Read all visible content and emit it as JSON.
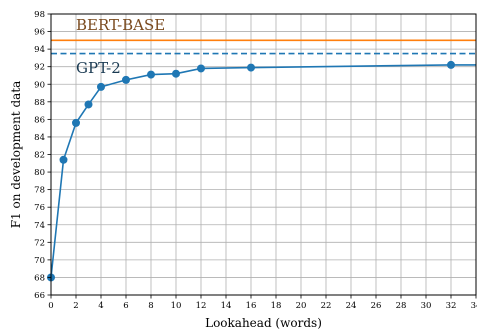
{
  "chart_data": {
    "type": "line",
    "xlabel": "Lookahead (words)",
    "ylabel": "F1 on development data",
    "xlim": [
      0,
      34
    ],
    "ylim": [
      66,
      98
    ],
    "xticks": [
      0,
      2,
      4,
      6,
      8,
      10,
      12,
      14,
      16,
      18,
      20,
      22,
      24,
      26,
      28,
      30,
      32,
      34
    ],
    "yticks": [
      66,
      68,
      70,
      72,
      74,
      76,
      78,
      80,
      82,
      84,
      86,
      88,
      90,
      92,
      94,
      96,
      98
    ],
    "grid": true,
    "series": [
      {
        "x": [
          0,
          1,
          2,
          3,
          4,
          6,
          8,
          10,
          12,
          16,
          32,
          34
        ],
        "y": [
          68.0,
          81.4,
          85.6,
          87.7,
          89.7,
          90.5,
          91.1,
          91.2,
          91.8,
          91.9,
          92.2,
          92.2
        ],
        "markers_x": [
          0,
          1,
          2,
          3,
          4,
          6,
          8,
          10,
          12,
          16,
          32
        ],
        "markers_y": [
          68.0,
          81.4,
          85.6,
          87.7,
          89.7,
          90.5,
          91.1,
          91.2,
          91.8,
          91.9,
          92.2
        ],
        "color": "#1f77b4"
      }
    ],
    "reference_lines": [
      {
        "label": "BERT-BASE",
        "y": 95.0,
        "style": "solid",
        "color": "#ff7f0e"
      },
      {
        "label": "GPT-2",
        "y": 93.5,
        "style": "dashed",
        "color": "#1f77b4"
      }
    ],
    "annotations": [
      {
        "text": "BERT-BASE",
        "color": "#7a4a1e"
      },
      {
        "text": "GPT-2",
        "color": "#1a3a52"
      }
    ]
  }
}
